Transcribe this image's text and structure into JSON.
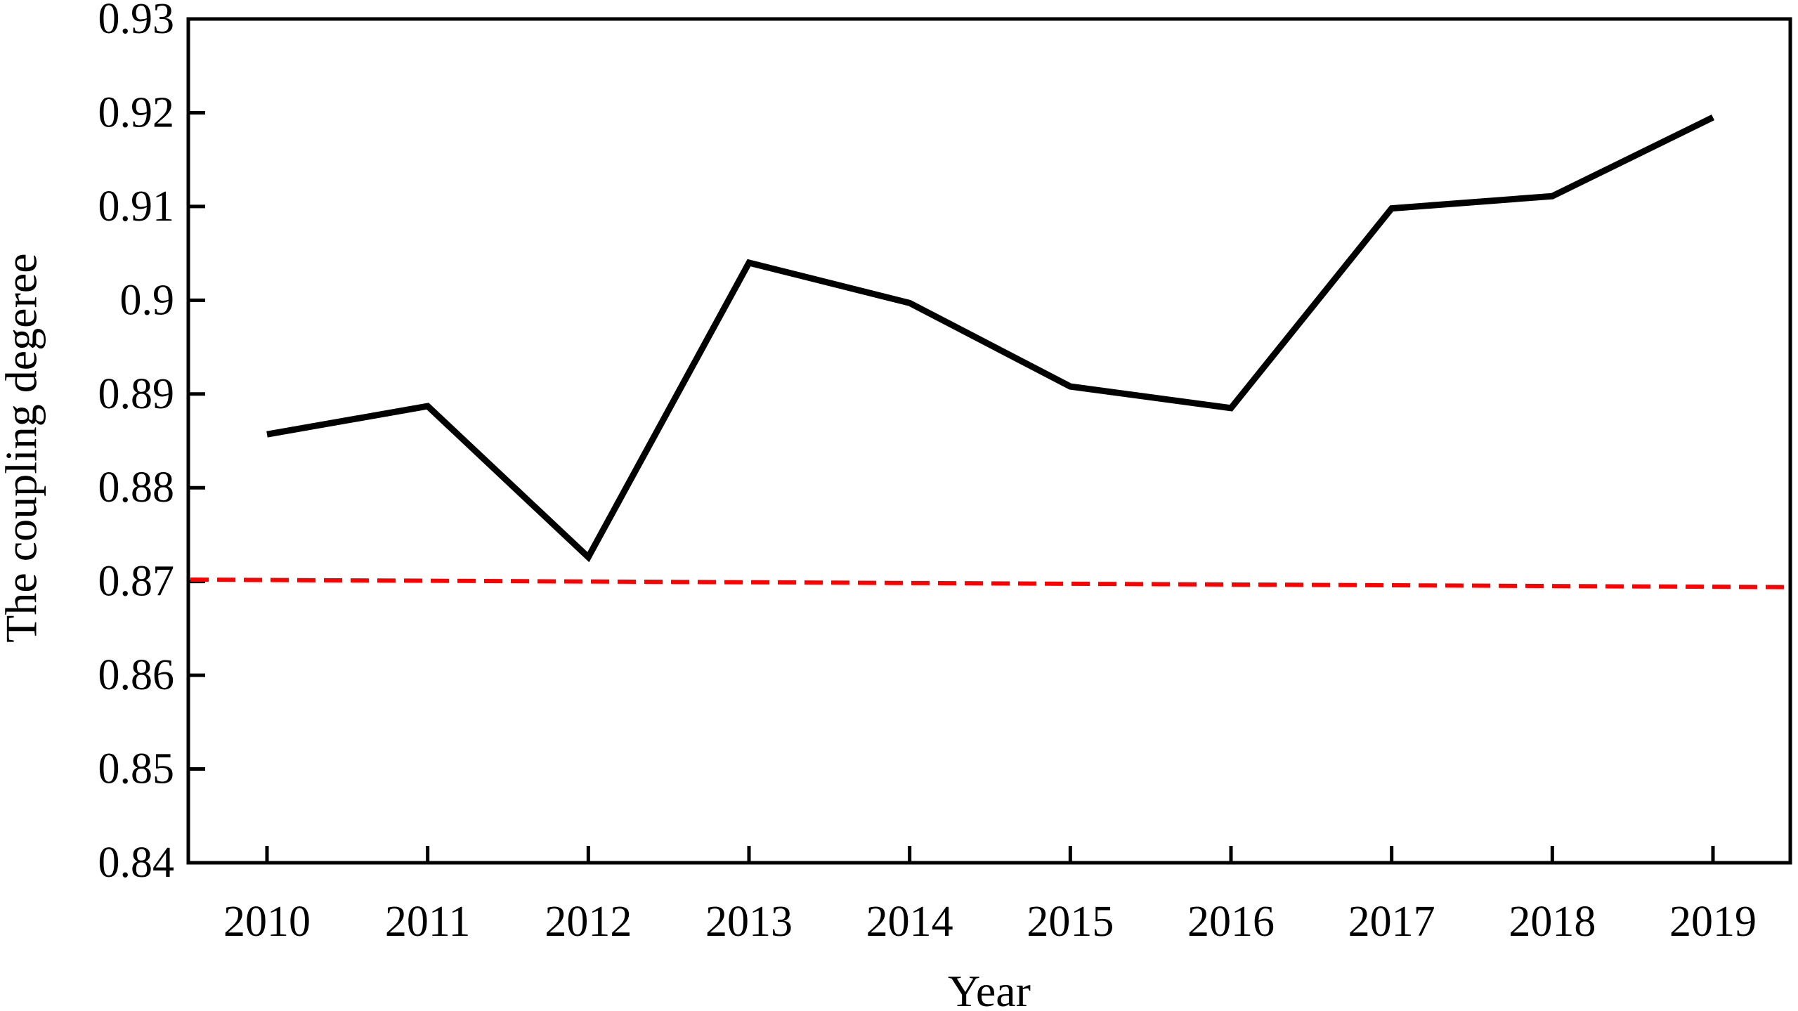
{
  "chart_data": {
    "type": "line",
    "title": "",
    "xlabel": "Year",
    "ylabel": "The coupling degeree",
    "categories": [
      "2010",
      "2011",
      "2012",
      "2013",
      "2014",
      "2015",
      "2016",
      "2017",
      "2018",
      "2019"
    ],
    "ylim": [
      0.84,
      0.93
    ],
    "yticks": [
      "0.84",
      "0.85",
      "0.86",
      "0.87",
      "0.88",
      "0.89",
      "0.9",
      "0.91",
      "0.92",
      "0.93"
    ],
    "grid": false,
    "legend": "none",
    "series": [
      {
        "values": [
          0.8857,
          0.8887,
          0.8726,
          0.904,
          0.8997,
          0.8908,
          0.8885,
          0.9098,
          0.9111,
          0.9195
        ],
        "color": "#000000",
        "style": "solid"
      }
    ],
    "reference_line": {
      "y_start": 0.8702,
      "y_end": 0.8694,
      "color": "#ff0000",
      "style": "dashed"
    }
  }
}
